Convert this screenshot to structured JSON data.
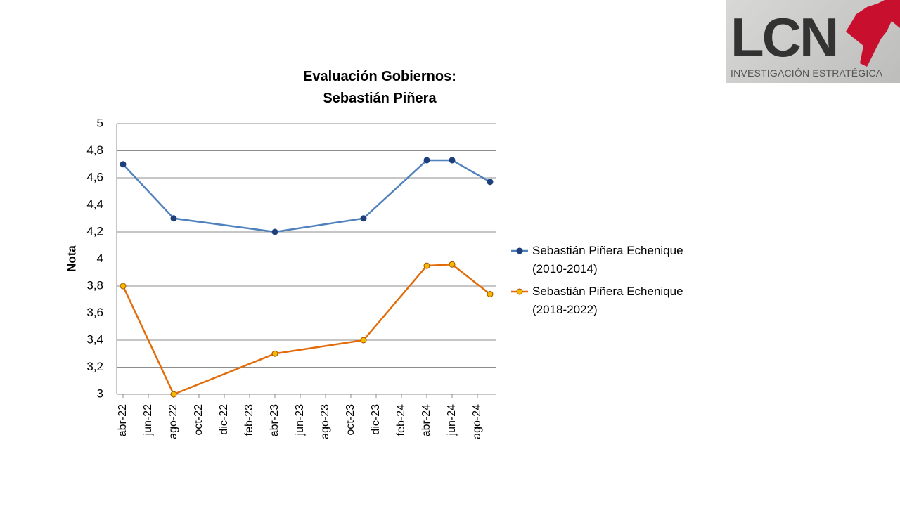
{
  "logo": {
    "text": "LCN",
    "subtitle": "INVESTIGACIÓN ESTRATÉGICA"
  },
  "chart_data": {
    "type": "line",
    "title": "Evaluación Gobiernos: Sebastián Piñera",
    "y_label": "Nota",
    "x": [
      "2022-04",
      "2022-08",
      "2023-04",
      "2023-11",
      "2024-04",
      "2024-06",
      "2024-09"
    ],
    "series": [
      {
        "name": "Sebastián Piñera Echenique (2010-2014)",
        "color": "#4f81bd",
        "marker_color": "#1f3f7a",
        "values": [
          4.7,
          4.3,
          4.2,
          4.3,
          4.73,
          4.73,
          4.57
        ]
      },
      {
        "name": "Sebastián Piñera Echenique (2018-2022)",
        "color": "#e36c0a",
        "marker_color": "#f5b800",
        "values": [
          3.8,
          3.0,
          3.3,
          3.4,
          3.95,
          3.96,
          3.74
        ]
      }
    ],
    "xlim": [
      "2022-04",
      "2024-09"
    ],
    "xticks": [
      {
        "value": "2022-04",
        "label": "abr-22"
      },
      {
        "value": "2022-06",
        "label": "jun-22"
      },
      {
        "value": "2022-08",
        "label": "ago-22"
      },
      {
        "value": "2022-10",
        "label": "oct-22"
      },
      {
        "value": "2022-12",
        "label": "dic-22"
      },
      {
        "value": "2023-02",
        "label": "feb-23"
      },
      {
        "value": "2023-04",
        "label": "abr-23"
      },
      {
        "value": "2023-06",
        "label": "jun-23"
      },
      {
        "value": "2023-08",
        "label": "ago-23"
      },
      {
        "value": "2023-10",
        "label": "oct-23"
      },
      {
        "value": "2023-12",
        "label": "dic-23"
      },
      {
        "value": "2024-02",
        "label": "feb-24"
      },
      {
        "value": "2024-04",
        "label": "abr-24"
      },
      {
        "value": "2024-06",
        "label": "jun-24"
      },
      {
        "value": "2024-08",
        "label": "ago-24"
      }
    ],
    "ylim": [
      3,
      5
    ],
    "yticks": [
      3,
      {
        "value": 3.2,
        "label": "3,2"
      },
      {
        "value": 3.4,
        "label": "3,4"
      },
      {
        "value": 3.6,
        "label": "3,6"
      },
      {
        "value": 3.8,
        "label": "3,8"
      },
      4,
      {
        "value": 4.2,
        "label": "4,2"
      },
      {
        "value": 4.4,
        "label": "4,4"
      },
      {
        "value": 4.6,
        "label": "4,6"
      },
      {
        "value": 4.8,
        "label": "4,8"
      },
      5
    ],
    "grid": true,
    "legend": "right"
  }
}
